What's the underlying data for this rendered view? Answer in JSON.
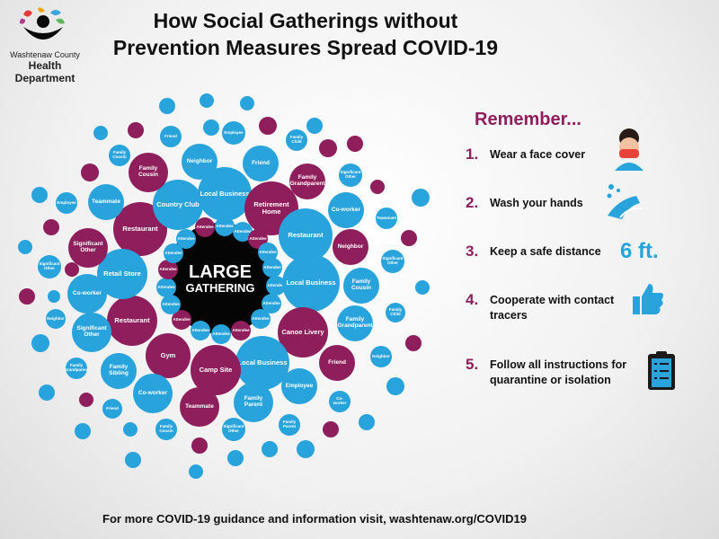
{
  "logo": {
    "line1": "Washtenaw County",
    "line2": "Health Department"
  },
  "header": {
    "title_lines": [
      "How Social Gatherings without",
      "Prevention Measures Spread COVID-19"
    ]
  },
  "diagram": {
    "center": [
      "LARGE",
      "GATHERING"
    ],
    "bubbles": [
      "Attendee",
      "Attendee",
      "Attendee",
      "Attendee",
      "Attendee",
      "Attendee",
      "Attendee",
      "Attendee",
      "Attendee",
      "Attendee",
      "Attendee",
      "Attendee",
      "Attendee",
      "Attendee",
      "Attendee",
      "Attendee",
      "Attendee",
      "Attendee",
      "Restaurant",
      "Country Club",
      "Local Business",
      "Retirement Home",
      "Restaurant",
      "Local Business",
      "Canoe Livery",
      "Local Business",
      "Camp Site",
      "Gym",
      "Restaurant",
      "Retail Store",
      "Family Cousin",
      "Neighbor",
      "Friend",
      "Family Grandparent",
      "Co-worker",
      "Neighbor",
      "Family Cousin",
      "Family Grandparent",
      "Friend",
      "Employee",
      "Family Parent",
      "Teammate",
      "Co-worker",
      "Family Sibling",
      "Significant Other",
      "Co-worker",
      "Significant Other",
      "Teammate",
      "Family Cousin",
      "Friend",
      "Employee",
      "Family Child",
      "Significant Other",
      "Teammate",
      "Significant Other",
      "Family Child",
      "Neighbor",
      "Co-worker",
      "Family Parent",
      "Significant Other",
      "Family Cousin",
      "Friend",
      "Family Grandparent",
      "Neighbor",
      "Significant Other",
      "Employee"
    ]
  },
  "remember": {
    "heading": "Remember...",
    "items": [
      {
        "number": "1.",
        "text": "Wear a face cover"
      },
      {
        "number": "2.",
        "text": "Wash your hands"
      },
      {
        "number": "3.",
        "text": "Keep a safe distance",
        "extra": "6 ft."
      },
      {
        "number": "4.",
        "text": "Cooperate with contact tracers"
      },
      {
        "number": "5.",
        "text": "Follow all instructions for quarantine or isolation"
      }
    ]
  },
  "footer": {
    "text": "For more COVID-19 guidance and information visit, washtenaw.org/COVID19"
  }
}
